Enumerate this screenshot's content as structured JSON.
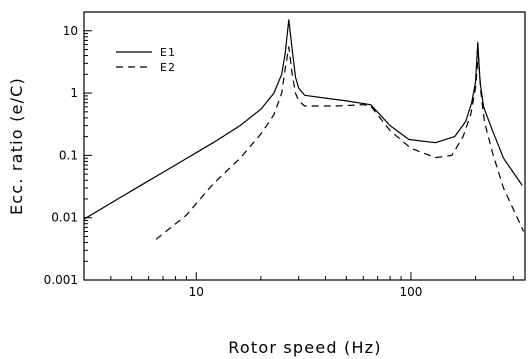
{
  "chart_data": {
    "type": "line",
    "title": "",
    "xlabel": "Rotor speed (Hz)",
    "ylabel": "Ecc. ratio (e/C)",
    "xscale": "log",
    "yscale": "log",
    "xlim": [
      3,
      340
    ],
    "ylim": [
      0.001,
      20
    ],
    "xticks": [
      {
        "value": 10,
        "label": "10"
      },
      {
        "value": 100,
        "label": "100"
      }
    ],
    "yticks": [
      {
        "value": 0.001,
        "label": "0.001"
      },
      {
        "value": 0.01,
        "label": "0.01"
      },
      {
        "value": 0.1,
        "label": "0.1"
      },
      {
        "value": 1,
        "label": "1"
      },
      {
        "value": 10,
        "label": "10"
      }
    ],
    "grid": false,
    "legend_position": "top-left",
    "series": [
      {
        "name": "E1",
        "style": "solid",
        "color": "#000000",
        "points": [
          [
            3,
            0.0095
          ],
          [
            5,
            0.027
          ],
          [
            8,
            0.07
          ],
          [
            12,
            0.16
          ],
          [
            16,
            0.3
          ],
          [
            20,
            0.55
          ],
          [
            23,
            1.0
          ],
          [
            25,
            2.0
          ],
          [
            26,
            4.5
          ],
          [
            27,
            15
          ],
          [
            28,
            5.0
          ],
          [
            29,
            1.8
          ],
          [
            30,
            1.2
          ],
          [
            32,
            0.92
          ],
          [
            40,
            0.83
          ],
          [
            50,
            0.75
          ],
          [
            65,
            0.65
          ],
          [
            80,
            0.3
          ],
          [
            98,
            0.18
          ],
          [
            130,
            0.16
          ],
          [
            160,
            0.2
          ],
          [
            180,
            0.35
          ],
          [
            192,
            0.7
          ],
          [
            200,
            1.5
          ],
          [
            205,
            6.5
          ],
          [
            210,
            1.5
          ],
          [
            218,
            0.6
          ],
          [
            240,
            0.25
          ],
          [
            270,
            0.09
          ],
          [
            330,
            0.033
          ]
        ]
      },
      {
        "name": "E2",
        "style": "dashed",
        "color": "#000000",
        "points": [
          [
            6.5,
            0.0045
          ],
          [
            9,
            0.011
          ],
          [
            12,
            0.035
          ],
          [
            16,
            0.09
          ],
          [
            20,
            0.22
          ],
          [
            23,
            0.45
          ],
          [
            25,
            1.0
          ],
          [
            26,
            2.5
          ],
          [
            27,
            5.5
          ],
          [
            28,
            2.0
          ],
          [
            29,
            1.0
          ],
          [
            30,
            0.75
          ],
          [
            32,
            0.62
          ],
          [
            45,
            0.62
          ],
          [
            60,
            0.65
          ],
          [
            65,
            0.62
          ],
          [
            80,
            0.25
          ],
          [
            100,
            0.13
          ],
          [
            130,
            0.092
          ],
          [
            155,
            0.1
          ],
          [
            175,
            0.2
          ],
          [
            190,
            0.45
          ],
          [
            200,
            1.2
          ],
          [
            206,
            4.0
          ],
          [
            212,
            1.0
          ],
          [
            220,
            0.35
          ],
          [
            240,
            0.11
          ],
          [
            270,
            0.03
          ],
          [
            320,
            0.0085
          ],
          [
            335,
            0.006
          ]
        ]
      }
    ]
  }
}
